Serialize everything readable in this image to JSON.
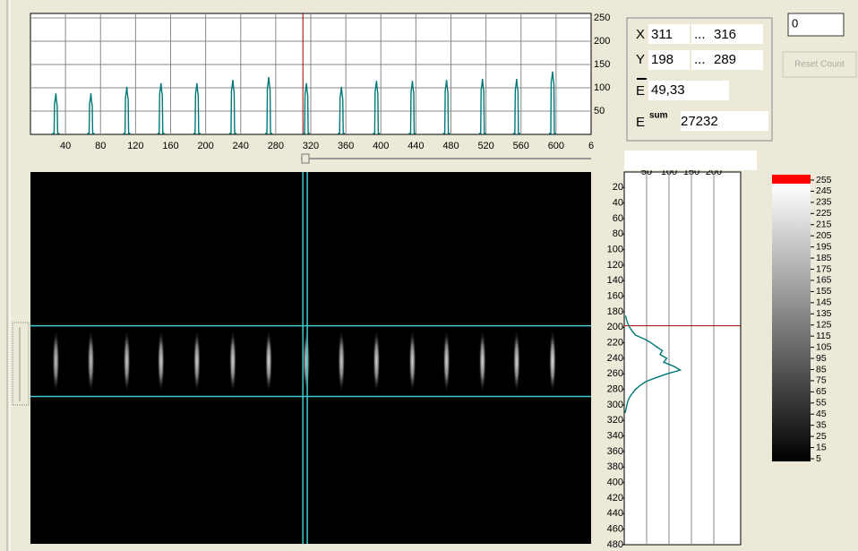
{
  "h_profile": {
    "type": "line",
    "color": "#007878",
    "x": [
      29,
      69,
      110,
      149,
      190,
      231,
      272,
      315,
      355,
      395,
      436,
      475,
      516,
      555,
      596
    ],
    "values": [
      88,
      88,
      102,
      110,
      110,
      117,
      123,
      110,
      102,
      115,
      115,
      117,
      119,
      119,
      135
    ],
    "xlim": [
      0,
      640
    ],
    "xticks": [
      40,
      80,
      120,
      160,
      200,
      240,
      280,
      320,
      360,
      400,
      440,
      480,
      520,
      560,
      600,
      {
        "value": 640,
        "label": "6"
      }
    ],
    "ylim": [
      0,
      250
    ],
    "yticks": [
      50,
      100,
      150,
      200,
      250
    ],
    "grid": true
  },
  "v_profile": {
    "type": "line",
    "color": "#007878",
    "y": [
      185,
      190,
      195,
      200,
      205,
      210,
      215,
      220,
      225,
      230,
      235,
      240,
      245,
      250,
      255,
      260,
      265,
      270,
      275,
      280,
      285,
      290,
      295,
      300,
      305,
      310
    ],
    "values": [
      3,
      5,
      8,
      12,
      18,
      25,
      45,
      60,
      72,
      85,
      80,
      95,
      88,
      110,
      125,
      95,
      70,
      48,
      35,
      25,
      18,
      12,
      8,
      6,
      4,
      2
    ],
    "xlim": [
      0,
      260
    ],
    "xticks": [
      50,
      100,
      150,
      200
    ],
    "ylim": [
      0,
      480
    ],
    "yticks": [
      20,
      40,
      60,
      80,
      100,
      120,
      140,
      160,
      180,
      200,
      220,
      240,
      260,
      280,
      300,
      320,
      340,
      360,
      380,
      400,
      420,
      440,
      460,
      480
    ],
    "grid": true
  },
  "cursor": {
    "x_label": "X",
    "x_from": 311,
    "x_to": 316,
    "y_label": "Y",
    "y_from": 198,
    "y_to": 289,
    "separator": "..."
  },
  "energy": {
    "mean_label": "E",
    "mean": "49,33",
    "sum_label": "E",
    "sum_sup": "sum",
    "sum": 27232
  },
  "counter": {
    "value": 0,
    "button": "Reset Count"
  },
  "colorbar": {
    "ticks": [
      255,
      245,
      235,
      225,
      215,
      205,
      195,
      185,
      175,
      165,
      155,
      145,
      135,
      125,
      115,
      105,
      95,
      85,
      75,
      65,
      55,
      45,
      35,
      25,
      15,
      5
    ]
  }
}
